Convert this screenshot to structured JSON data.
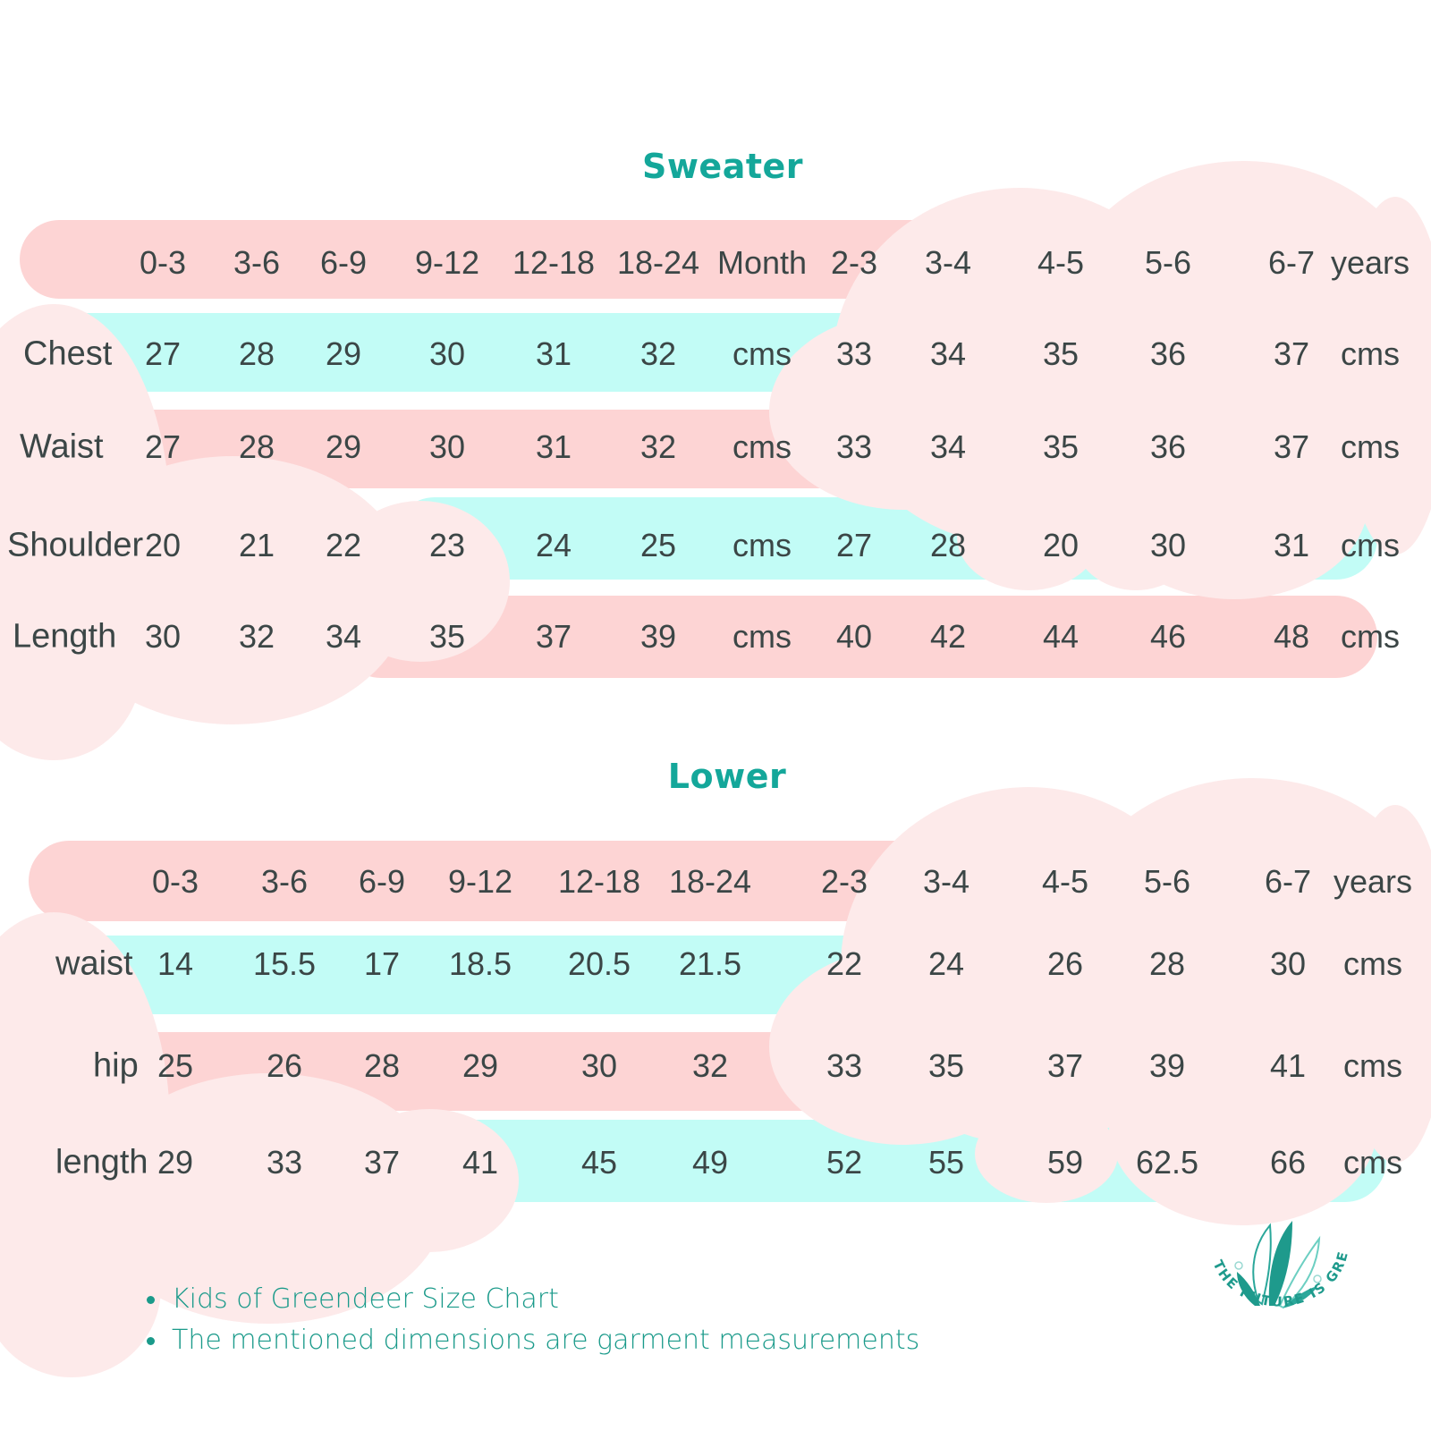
{
  "colors": {
    "title": "#14a79a",
    "pink_bar": "#fdd4d4",
    "cyan_bar": "#c2fcf6",
    "cloud": "#fdeaea",
    "text": "#3b4646",
    "notes": "#1a9a8a"
  },
  "sweater": {
    "title": "Sweater",
    "header": [
      "0-3",
      "3-6",
      "6-9",
      "9-12",
      "12-18",
      "18-24",
      "Month",
      "2-3",
      "3-4",
      "4-5",
      "5-6",
      "6-7",
      "years"
    ],
    "rows": [
      {
        "label": "Chest",
        "values": [
          "27",
          "28",
          "29",
          "30",
          "31",
          "32",
          "cms",
          "33",
          "34",
          "35",
          "36",
          "37",
          "cms"
        ]
      },
      {
        "label": "Waist",
        "values": [
          "27",
          "28",
          "29",
          "30",
          "31",
          "32",
          "cms",
          "33",
          "34",
          "35",
          "36",
          "37",
          "cms"
        ]
      },
      {
        "label": "Shoulder",
        "values": [
          "20",
          "21",
          "22",
          "23",
          "24",
          "25",
          "cms",
          "27",
          "28",
          "20",
          "30",
          "31",
          "cms"
        ]
      },
      {
        "label": "Length",
        "values": [
          "30",
          "32",
          "34",
          "35",
          "37",
          "39",
          "cms",
          "40",
          "42",
          "44",
          "46",
          "48",
          "cms"
        ]
      }
    ]
  },
  "lower": {
    "title": "Lower",
    "header": [
      "0-3",
      "3-6",
      "6-9",
      "9-12",
      "12-18",
      "18-24",
      "2-3",
      "3-4",
      "4-5",
      "5-6",
      "6-7",
      "years"
    ],
    "rows": [
      {
        "label": "waist",
        "values": [
          "14",
          "15.5",
          "17",
          "18.5",
          "20.5",
          "21.5",
          "22",
          "24",
          "26",
          "28",
          "30",
          "cms"
        ]
      },
      {
        "label": "hip",
        "values": [
          "25",
          "26",
          "28",
          "29",
          "30",
          "32",
          "33",
          "35",
          "37",
          "39",
          "41",
          "cms"
        ]
      },
      {
        "label": "length",
        "values": [
          "29",
          "33",
          "37",
          "41",
          "45",
          "49",
          "52",
          "55",
          "59",
          "62.5",
          "66",
          "cms"
        ]
      }
    ]
  },
  "notes": [
    "Kids of Greendeer Size Chart",
    "The mentioned dimensions are garment measurements"
  ],
  "logo": {
    "text": "THE FUTURE IS GREEN",
    "icon": "leaves-icon"
  }
}
